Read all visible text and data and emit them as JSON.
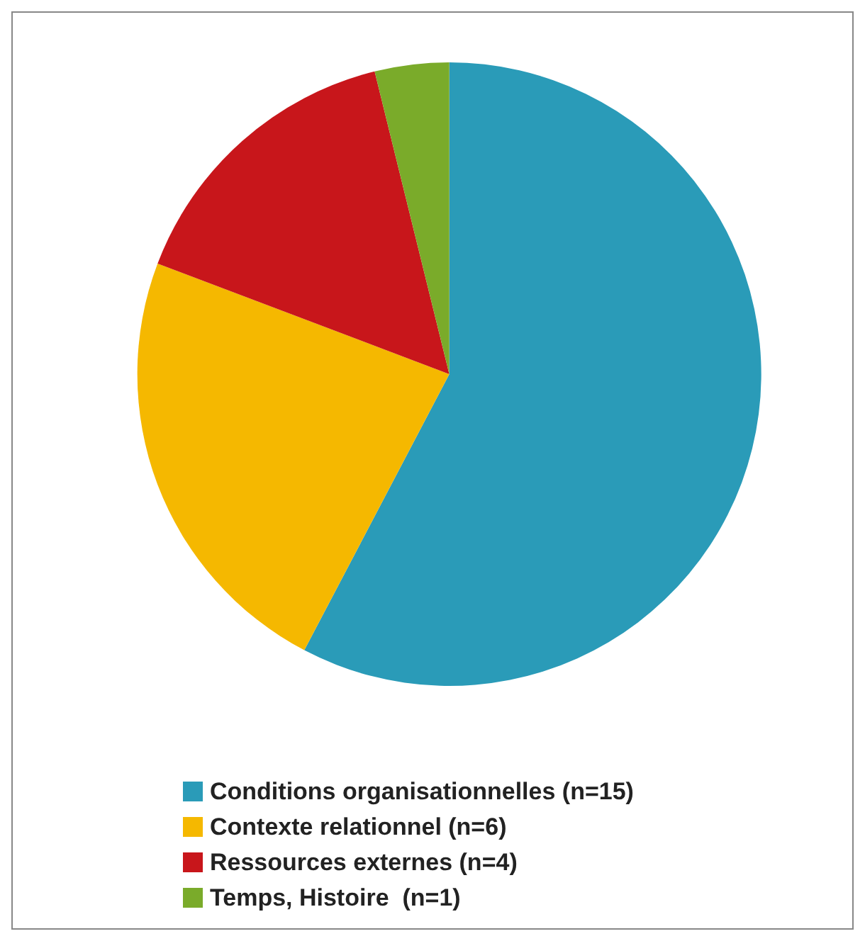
{
  "chart_data": {
    "type": "pie",
    "categories": [
      "Conditions organisationnelles (n=15)",
      "Contexte relationnel (n=6)",
      "Ressources externes (n=4)",
      "Temps, Histoire  (n=1)"
    ],
    "values": [
      15,
      6,
      4,
      1
    ],
    "colors": [
      "#2a9bb8",
      "#f5b800",
      "#c8161b",
      "#7aab2a"
    ],
    "legend": "bottom"
  }
}
